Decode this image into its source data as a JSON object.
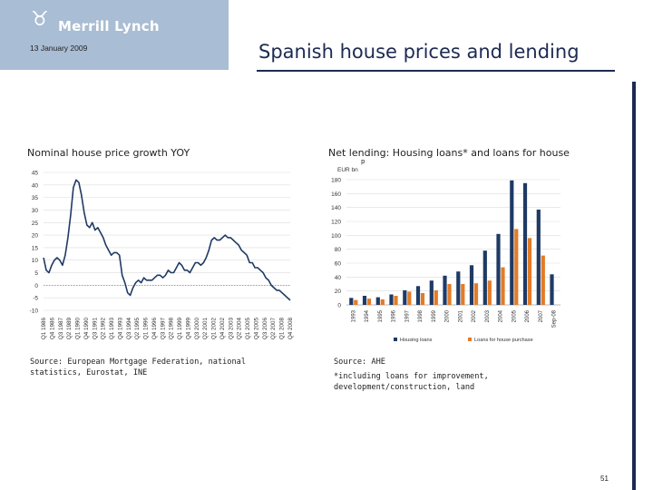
{
  "header": {
    "brand": "Merrill Lynch",
    "date": "13 January 2009",
    "title": "Spanish house prices and lending"
  },
  "left_chart": {
    "title": "Nominal house price growth YOY",
    "source": "Source: European Mortgage Federation, national statistics, Eurostat, INE"
  },
  "right_chart": {
    "title": "Net lending: Housing loans* and loans for house",
    "title_cont": "p",
    "unit": "EUR bn",
    "source": "Source: AHE",
    "footnote": "*including loans for improvement, development/construction, land"
  },
  "page_number": "51",
  "chart_data": [
    {
      "type": "line",
      "title": "Nominal house price growth YOY",
      "ylim": [
        -10,
        45
      ],
      "yticks": [
        45,
        40,
        35,
        30,
        25,
        20,
        15,
        10,
        5,
        0,
        -5,
        -10
      ],
      "xtick_labels": [
        "Q1 1986",
        "Q4 1986",
        "Q3 1987",
        "Q2 1988",
        "Q1 1989",
        "Q4 1989",
        "Q3 1990",
        "Q2 1991",
        "Q1 1992",
        "Q4 1992",
        "Q3 1993",
        "Q2 1994",
        "Q1 1995",
        "Q4 1995",
        "Q3 1996",
        "Q2 1997",
        "Q1 1998",
        "Q4 1998",
        "Q3 1999",
        "Q2 2000",
        "Q1 2001",
        "Q4 2001",
        "Q3 2002",
        "Q2 2003",
        "Q1 2004",
        "Q4 2004",
        "Q3 2005",
        "Q2 2006",
        "Q1 2007",
        "Q4 2007",
        "Q3 2008"
      ],
      "xtick_labels_shown": [
        "Q1 1986",
        "Q4 1986",
        "Q3 1987",
        "Q2 1989",
        "Q1 1990",
        "Q4 1990",
        "Q3 1991",
        "Q2 1992",
        "Q1 1993",
        "Q4 1993",
        "Q3 1994",
        "Q2 1995",
        "Q1 1996",
        "Q4 1996",
        "Q3 1997",
        "Q2 1998",
        "Q1 1999",
        "Q4 1999",
        "Q3 2000",
        "Q2 2001",
        "Q1 2002",
        "Q4 2002",
        "Q3 2003",
        "Q2 2004",
        "Q1 2005",
        "Q4 2005",
        "Q3 2006",
        "Q2 2007",
        "Q1 2008",
        "Q4 2008"
      ],
      "x": [
        "Q1 1986",
        "Q2 1986",
        "Q3 1986",
        "Q4 1986",
        "Q1 1987",
        "Q2 1987",
        "Q3 1987",
        "Q4 1987",
        "Q1 1988",
        "Q2 1988",
        "Q3 1988",
        "Q4 1988",
        "Q1 1989",
        "Q2 1989",
        "Q3 1989",
        "Q4 1989",
        "Q1 1990",
        "Q2 1990",
        "Q3 1990",
        "Q4 1990",
        "Q1 1991",
        "Q2 1991",
        "Q3 1991",
        "Q4 1991",
        "Q1 1992",
        "Q2 1992",
        "Q3 1992",
        "Q4 1992",
        "Q1 1993",
        "Q2 1993",
        "Q3 1993",
        "Q4 1993",
        "Q1 1994",
        "Q2 1994",
        "Q3 1994",
        "Q4 1994",
        "Q1 1995",
        "Q2 1995",
        "Q3 1995",
        "Q4 1995",
        "Q1 1996",
        "Q2 1996",
        "Q3 1996",
        "Q4 1996",
        "Q1 1997",
        "Q2 1997",
        "Q3 1997",
        "Q4 1997",
        "Q1 1998",
        "Q2 1998",
        "Q3 1998",
        "Q4 1998",
        "Q1 1999",
        "Q2 1999",
        "Q3 1999",
        "Q4 1999",
        "Q1 2000",
        "Q2 2000",
        "Q3 2000",
        "Q4 2000",
        "Q1 2001",
        "Q2 2001",
        "Q3 2001",
        "Q4 2001",
        "Q1 2002",
        "Q2 2002",
        "Q3 2002",
        "Q4 2002",
        "Q1 2003",
        "Q2 2003",
        "Q3 2003",
        "Q4 2003",
        "Q1 2004",
        "Q2 2004",
        "Q3 2004",
        "Q4 2004",
        "Q1 2005",
        "Q2 2005",
        "Q3 2005",
        "Q4 2005",
        "Q1 2006",
        "Q2 2006",
        "Q3 2006",
        "Q4 2006",
        "Q1 2007",
        "Q2 2007",
        "Q3 2007",
        "Q4 2007",
        "Q1 2008",
        "Q2 2008",
        "Q3 2008",
        "Q4 2008"
      ],
      "values": [
        11,
        6,
        5,
        8,
        10,
        11,
        10,
        8,
        12,
        19,
        28,
        39,
        42,
        41,
        36,
        29,
        24,
        23,
        25,
        22,
        23,
        21,
        19,
        16,
        14,
        12,
        13,
        13,
        12,
        4,
        1,
        -3,
        -4,
        -1,
        1,
        2,
        1,
        3,
        2,
        2,
        2,
        3,
        4,
        4,
        3,
        4,
        6,
        5,
        5,
        7,
        9,
        8,
        6,
        6,
        5,
        7,
        9,
        9,
        8,
        9,
        11,
        14,
        18,
        19,
        18,
        18,
        19,
        20,
        19,
        19,
        18,
        17,
        16,
        14,
        13,
        12,
        9,
        9,
        7,
        7,
        6,
        5,
        3,
        2,
        0,
        -1,
        -2,
        -2,
        -3,
        -4,
        -5,
        -6
      ]
    },
    {
      "type": "bar",
      "title": "Net lending: Housing loans* and loans for house",
      "ylabel": "EUR bn",
      "ylim": [
        0,
        180
      ],
      "yticks": [
        180,
        160,
        140,
        120,
        100,
        80,
        60,
        40,
        20,
        0
      ],
      "categories": [
        "1993",
        "1994",
        "1995",
        "1996",
        "1997",
        "1998",
        "1999",
        "2000",
        "2001",
        "2002",
        "2003",
        "2004",
        "2005",
        "2006",
        "2007",
        "Sep-08"
      ],
      "series": [
        {
          "name": "Housing loans",
          "color": "#1f3a64",
          "values": [
            10,
            13,
            11,
            15,
            21,
            27,
            35,
            42,
            48,
            57,
            78,
            102,
            179,
            175,
            137,
            44
          ]
        },
        {
          "name": "Loans for house purchase",
          "color": "#e37b27",
          "values": [
            7,
            9,
            8,
            13,
            19,
            17,
            21,
            30,
            30,
            31,
            35,
            54,
            109,
            96,
            71,
            null
          ]
        }
      ],
      "legend_position": "bottom"
    }
  ]
}
